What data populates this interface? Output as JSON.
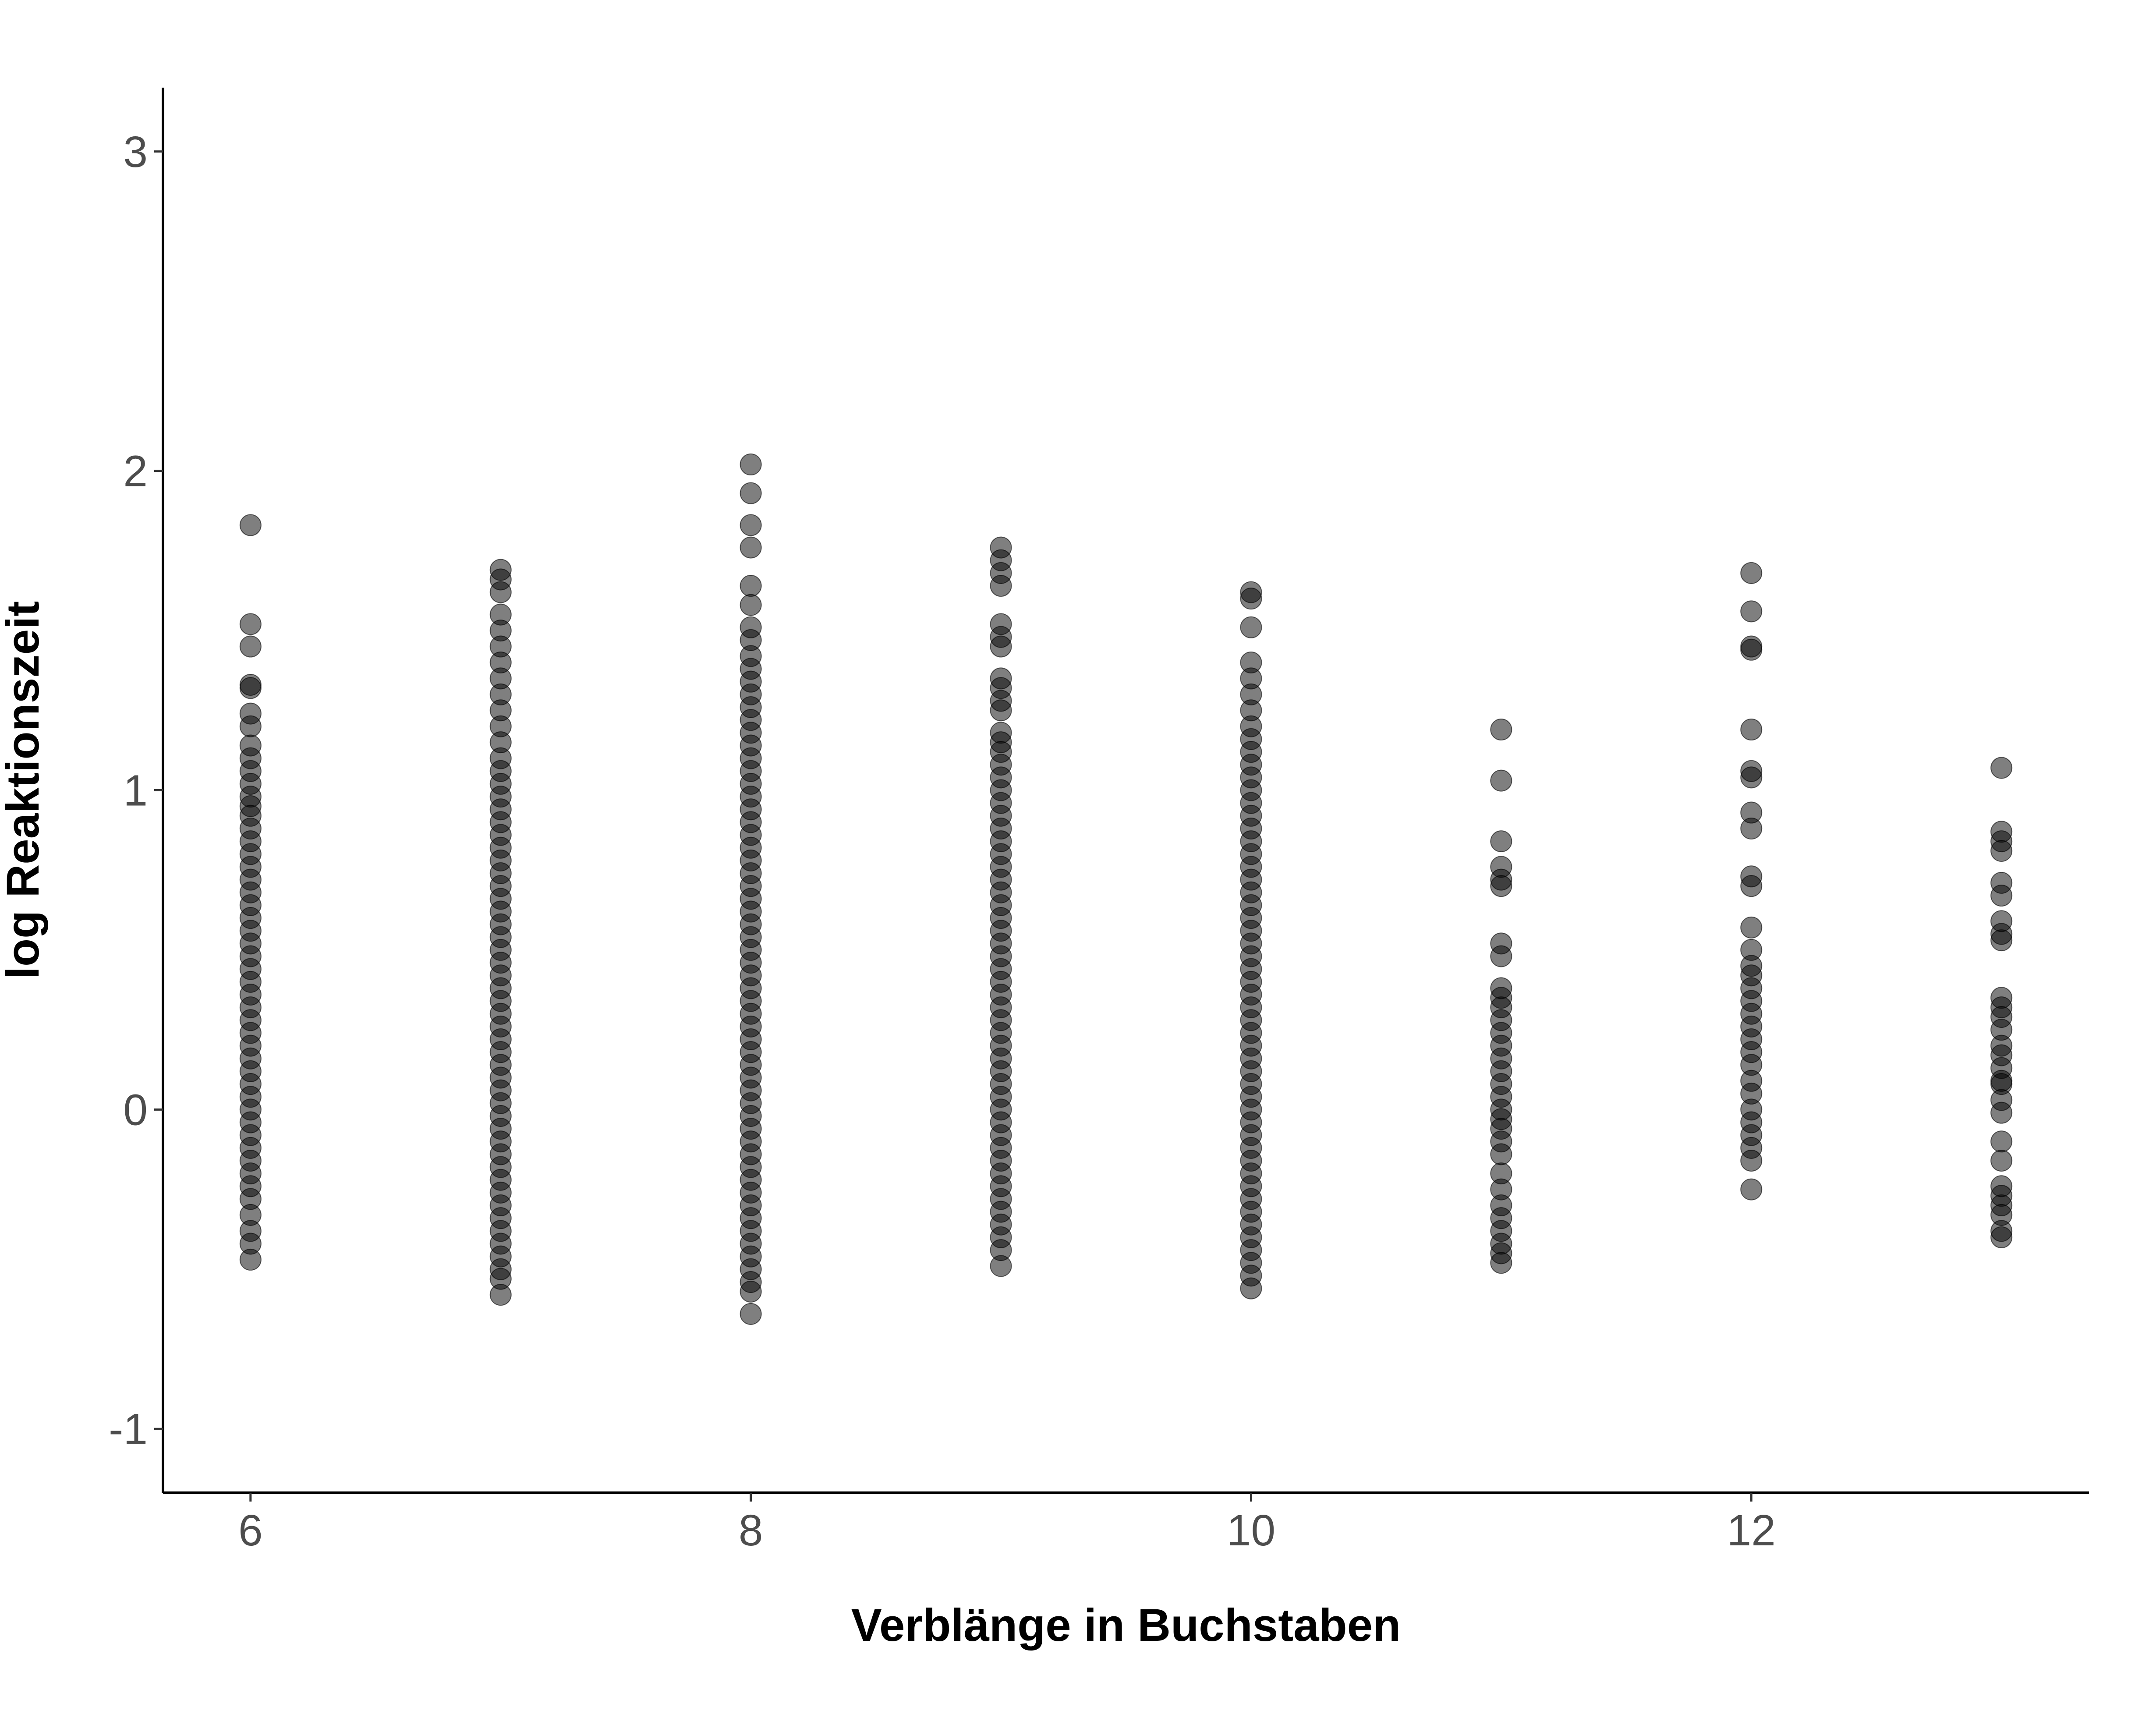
{
  "chart_data": {
    "type": "scatter",
    "title": "",
    "xlabel": "Verblänge in Buchstaben",
    "ylabel": "log Reaktionszeit",
    "xlim": [
      5.65,
      13.35
    ],
    "ylim": [
      -1.2,
      3.2
    ],
    "x_ticks": [
      6,
      8,
      10,
      12
    ],
    "y_ticks": [
      -1,
      0,
      1,
      2,
      3
    ],
    "x_tick_labels": [
      "6",
      "8",
      "10",
      "12"
    ],
    "y_tick_labels": [
      "-1",
      "0",
      "1",
      "2",
      "3"
    ],
    "grid": false,
    "legend": "none",
    "point_color": "#000000",
    "point_opacity": 0.5,
    "series": [
      {
        "x": 6,
        "y": [
          1.83,
          1.52,
          1.45,
          1.33,
          1.32,
          1.24,
          1.2,
          1.14,
          1.1,
          1.06,
          1.02,
          0.98,
          0.95,
          0.92,
          0.88,
          0.84,
          0.8,
          0.76,
          0.72,
          0.68,
          0.64,
          0.6,
          0.56,
          0.52,
          0.48,
          0.44,
          0.4,
          0.36,
          0.32,
          0.28,
          0.24,
          0.2,
          0.16,
          0.12,
          0.08,
          0.04,
          0.0,
          -0.04,
          -0.08,
          -0.12,
          -0.16,
          -0.2,
          -0.24,
          -0.28,
          -0.33,
          -0.38,
          -0.42,
          -0.47
        ]
      },
      {
        "x": 7,
        "y": [
          1.69,
          1.66,
          1.62,
          1.55,
          1.5,
          1.45,
          1.4,
          1.35,
          1.3,
          1.25,
          1.2,
          1.15,
          1.1,
          1.06,
          1.02,
          0.98,
          0.94,
          0.9,
          0.86,
          0.82,
          0.78,
          0.74,
          0.7,
          0.66,
          0.62,
          0.58,
          0.54,
          0.5,
          0.46,
          0.42,
          0.38,
          0.34,
          0.3,
          0.26,
          0.22,
          0.18,
          0.14,
          0.1,
          0.06,
          0.02,
          -0.02,
          -0.06,
          -0.1,
          -0.14,
          -0.18,
          -0.22,
          -0.26,
          -0.3,
          -0.34,
          -0.38,
          -0.42,
          -0.46,
          -0.5,
          -0.53,
          -0.58
        ]
      },
      {
        "x": 8,
        "y": [
          2.02,
          1.93,
          1.83,
          1.76,
          1.64,
          1.58,
          1.51,
          1.47,
          1.42,
          1.38,
          1.34,
          1.3,
          1.26,
          1.22,
          1.18,
          1.14,
          1.1,
          1.06,
          1.02,
          0.98,
          0.94,
          0.9,
          0.86,
          0.82,
          0.78,
          0.74,
          0.7,
          0.66,
          0.62,
          0.58,
          0.54,
          0.5,
          0.46,
          0.42,
          0.38,
          0.34,
          0.3,
          0.26,
          0.22,
          0.18,
          0.14,
          0.1,
          0.06,
          0.02,
          -0.02,
          -0.06,
          -0.1,
          -0.14,
          -0.18,
          -0.22,
          -0.26,
          -0.3,
          -0.34,
          -0.38,
          -0.42,
          -0.46,
          -0.5,
          -0.54,
          -0.57,
          -0.64
        ]
      },
      {
        "x": 9,
        "y": [
          1.76,
          1.72,
          1.68,
          1.64,
          1.52,
          1.48,
          1.45,
          1.35,
          1.32,
          1.28,
          1.25,
          1.18,
          1.15,
          1.12,
          1.08,
          1.04,
          1.0,
          0.96,
          0.92,
          0.88,
          0.84,
          0.8,
          0.76,
          0.72,
          0.68,
          0.64,
          0.6,
          0.56,
          0.52,
          0.48,
          0.44,
          0.4,
          0.36,
          0.32,
          0.28,
          0.24,
          0.2,
          0.16,
          0.12,
          0.08,
          0.04,
          0.0,
          -0.04,
          -0.08,
          -0.12,
          -0.16,
          -0.2,
          -0.24,
          -0.28,
          -0.32,
          -0.36,
          -0.4,
          -0.44,
          -0.49
        ]
      },
      {
        "x": 10,
        "y": [
          1.62,
          1.6,
          1.51,
          1.4,
          1.35,
          1.3,
          1.25,
          1.2,
          1.16,
          1.12,
          1.08,
          1.04,
          1.0,
          0.96,
          0.92,
          0.88,
          0.84,
          0.8,
          0.76,
          0.72,
          0.68,
          0.64,
          0.6,
          0.56,
          0.52,
          0.48,
          0.44,
          0.4,
          0.36,
          0.32,
          0.28,
          0.24,
          0.2,
          0.16,
          0.12,
          0.08,
          0.04,
          0.0,
          -0.04,
          -0.08,
          -0.12,
          -0.16,
          -0.2,
          -0.24,
          -0.28,
          -0.32,
          -0.36,
          -0.4,
          -0.44,
          -0.48,
          -0.52,
          -0.56
        ]
      },
      {
        "x": 11,
        "y": [
          1.19,
          1.03,
          0.84,
          0.76,
          0.72,
          0.7,
          0.52,
          0.48,
          0.38,
          0.35,
          0.32,
          0.28,
          0.24,
          0.2,
          0.16,
          0.12,
          0.08,
          0.04,
          0.0,
          -0.03,
          -0.06,
          -0.1,
          -0.14,
          -0.2,
          -0.25,
          -0.3,
          -0.34,
          -0.38,
          -0.42,
          -0.45,
          -0.48
        ]
      },
      {
        "x": 12,
        "y": [
          1.68,
          1.56,
          1.45,
          1.44,
          1.19,
          1.06,
          1.04,
          0.93,
          0.88,
          0.73,
          0.7,
          0.57,
          0.5,
          0.45,
          0.42,
          0.38,
          0.34,
          0.3,
          0.26,
          0.22,
          0.18,
          0.14,
          0.09,
          0.05,
          0.0,
          -0.04,
          -0.08,
          -0.12,
          -0.16,
          -0.25
        ]
      },
      {
        "x": 13,
        "y": [
          1.07,
          0.87,
          0.84,
          0.81,
          0.71,
          0.67,
          0.59,
          0.55,
          0.53,
          0.35,
          0.32,
          0.29,
          0.25,
          0.2,
          0.17,
          0.13,
          0.09,
          0.08,
          0.03,
          -0.01,
          -0.1,
          -0.16,
          -0.24,
          -0.27,
          -0.3,
          -0.33,
          -0.38,
          -0.4
        ]
      }
    ]
  }
}
